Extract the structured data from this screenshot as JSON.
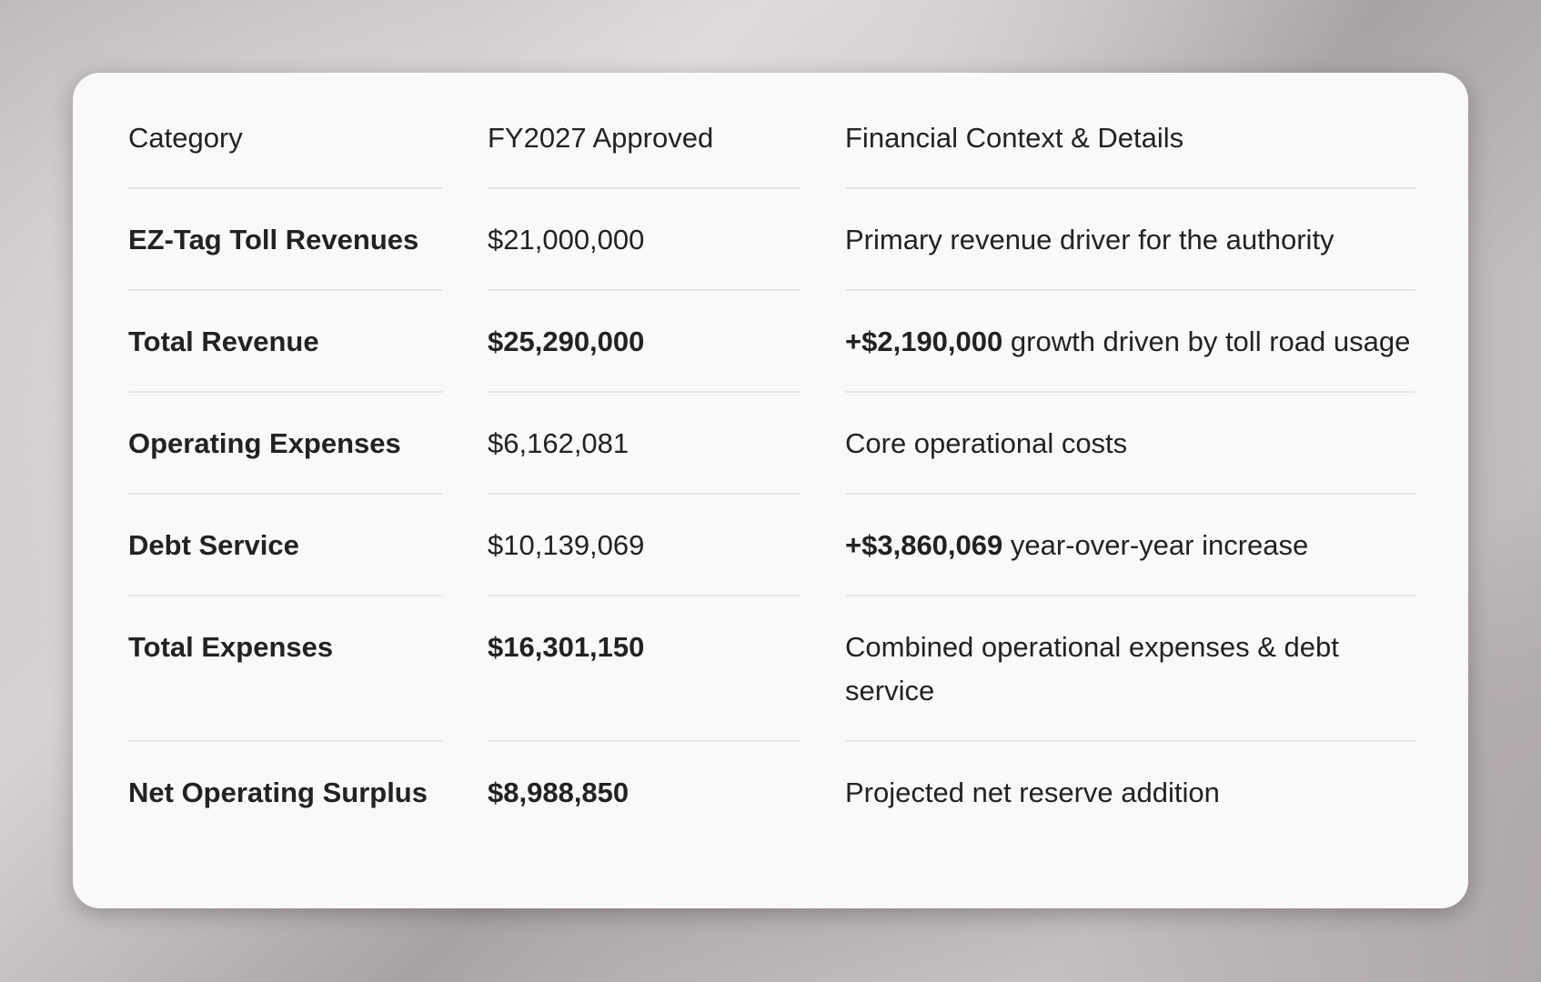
{
  "table": {
    "headers": [
      "Category",
      "FY2027 Approved",
      "Financial Context & Details"
    ],
    "rows": [
      {
        "category": "EZ-Tag Toll Revenues",
        "amount": "$21,000,000",
        "details": "Primary revenue driver for the authority"
      },
      {
        "category": "Total Revenue",
        "amount": "$25,290,000",
        "details": {
          "emphasis": "+$2,190,000",
          "text": "growth driven by toll road usage"
        }
      },
      {
        "category": "Operating Expenses",
        "amount": "$6,162,081",
        "details": "Core operational costs"
      },
      {
        "category": "Debt Service",
        "amount": "$10,139,069",
        "details": {
          "emphasis": "+$3,860,069",
          "text": "year-over-year increase"
        }
      },
      {
        "category": "Total Expenses",
        "amount": "$16,301,150",
        "details": "Combined operational expenses & debt service"
      },
      {
        "category": "Net Operating Surplus",
        "amount": "$8,988,850",
        "details": "Projected net reserve addition"
      }
    ]
  }
}
